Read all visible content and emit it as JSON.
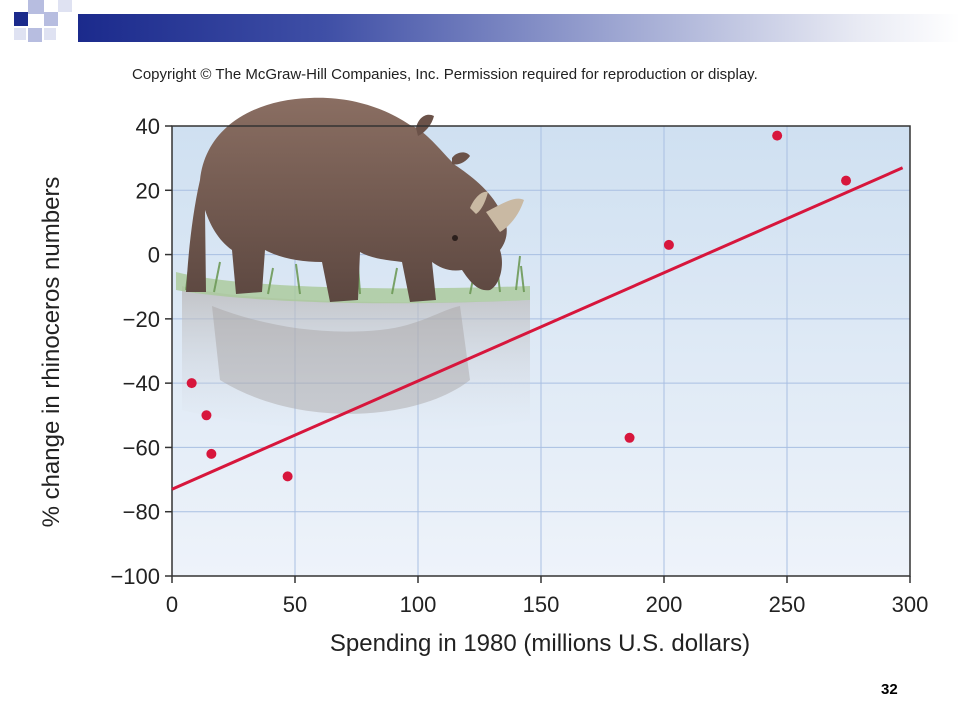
{
  "slide": {
    "copyright": "Copyright © The McGraw-Hill Companies, Inc. Permission required for reproduction or display.",
    "page_number": "32",
    "colors": {
      "banner_dark": "#1b2a8c",
      "point": "#d7163c",
      "trend_line": "#d7163c",
      "plot_background_top": "#cfe0f1",
      "plot_background_bottom": "#eef3fa",
      "grid": "#a9bfe2"
    },
    "decorations": [
      "rhinoceros-illustration"
    ]
  },
  "chart_data": {
    "type": "scatter",
    "title": "",
    "xlabel": "Spending in 1980 (millions U.S. dollars)",
    "ylabel": "% change in rhinoceros numbers",
    "xlim": [
      0,
      300
    ],
    "ylim": [
      -100,
      40
    ],
    "x_ticks": [
      0,
      50,
      100,
      150,
      200,
      250,
      300
    ],
    "y_ticks": [
      40,
      20,
      0,
      -20,
      -40,
      -60,
      -80,
      -100
    ],
    "y_tick_labels": [
      "40",
      "20",
      "0",
      "−20",
      "−40",
      "−60",
      "−80",
      "−100"
    ],
    "grid": true,
    "points": [
      {
        "x": 8,
        "y": -40
      },
      {
        "x": 14,
        "y": -50
      },
      {
        "x": 16,
        "y": -62
      },
      {
        "x": 47,
        "y": -69
      },
      {
        "x": 186,
        "y": -57
      },
      {
        "x": 202,
        "y": 3
      },
      {
        "x": 246,
        "y": 37
      },
      {
        "x": 274,
        "y": 23
      }
    ],
    "trend_line": {
      "x": [
        0,
        297
      ],
      "y": [
        -73,
        27
      ]
    }
  }
}
